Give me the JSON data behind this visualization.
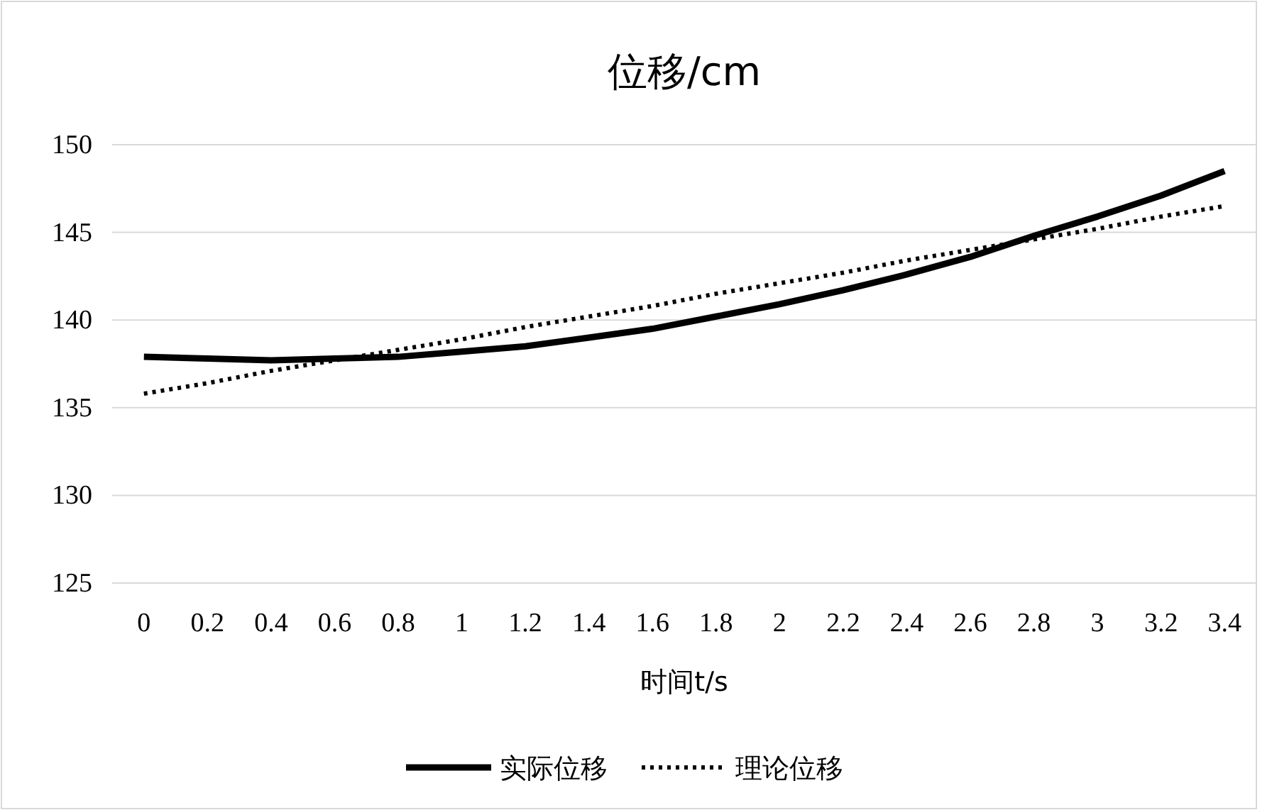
{
  "chart_data": {
    "type": "line",
    "title": "位移/cm",
    "xlabel": "时间t/s",
    "categories": [
      "0",
      "0.2",
      "0.4",
      "0.6",
      "0.8",
      "1",
      "1.2",
      "1.4",
      "1.6",
      "1.8",
      "2",
      "2.2",
      "2.4",
      "2.6",
      "2.8",
      "3",
      "3.2",
      "3.4"
    ],
    "series": [
      {
        "name": "实际位移",
        "color": "#000000",
        "line_style": "solid",
        "values": [
          137.9,
          137.8,
          137.7,
          137.8,
          137.9,
          138.2,
          138.5,
          139.0,
          139.5,
          140.2,
          140.9,
          141.7,
          142.6,
          143.6,
          144.8,
          145.9,
          147.1,
          148.5
        ]
      },
      {
        "name": "理论位移",
        "color": "#000000",
        "line_style": "dotted",
        "values": [
          135.8,
          136.4,
          137.1,
          137.7,
          138.3,
          138.9,
          139.6,
          140.2,
          140.8,
          141.5,
          142.1,
          142.7,
          143.4,
          144.0,
          144.6,
          145.2,
          145.9,
          146.5
        ]
      }
    ],
    "ylim": [
      125,
      150
    ],
    "yticks": [
      125,
      130,
      135,
      140,
      145,
      150
    ],
    "grid": "y",
    "legend": "bottom"
  }
}
